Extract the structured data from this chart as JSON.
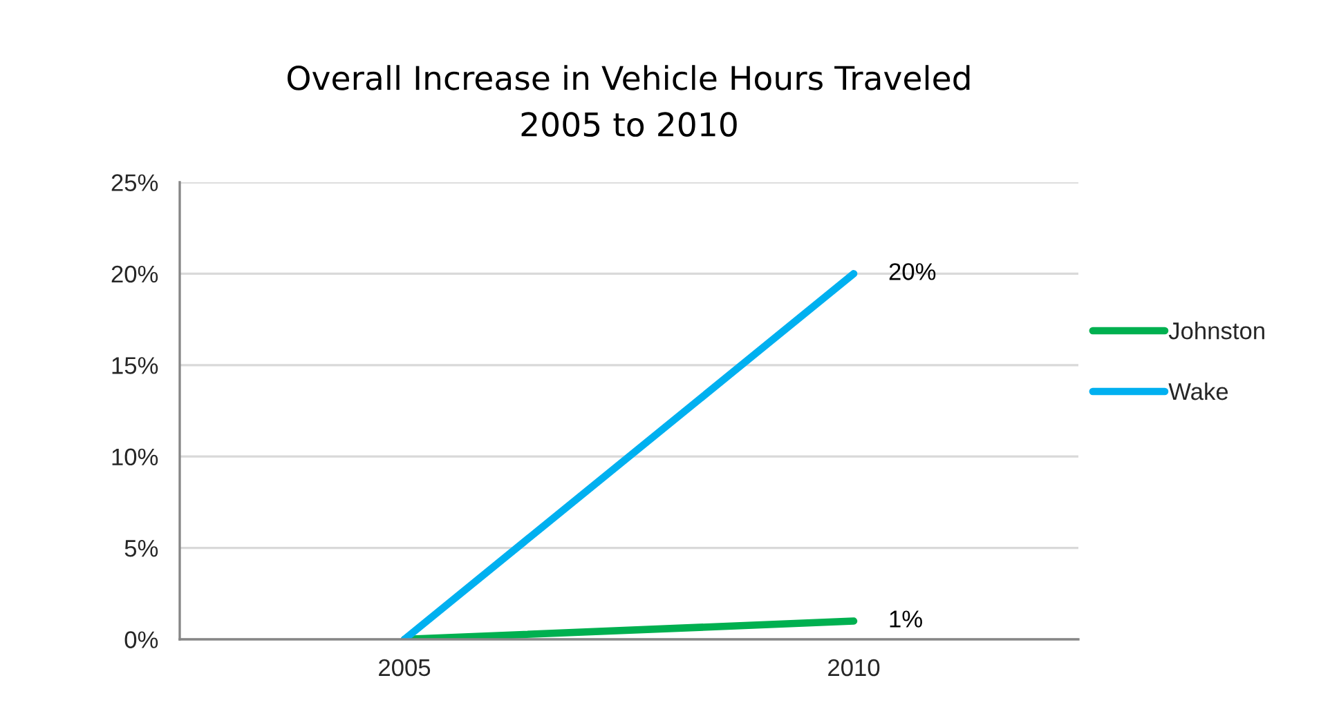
{
  "chart_data": {
    "type": "line",
    "title": "Overall Increase in Vehicle Hours Traveled\n2005 to 2010",
    "categories": [
      "2005",
      "2010"
    ],
    "series": [
      {
        "name": "Johnston",
        "color": "#00b050",
        "values": [
          0,
          1
        ],
        "value_labels": [
          null,
          "1%"
        ]
      },
      {
        "name": "Wake",
        "color": "#00b0f0",
        "values": [
          0,
          20
        ],
        "value_labels": [
          null,
          "20%"
        ]
      }
    ],
    "ylim": [
      0,
      25
    ],
    "yticks": [
      {
        "value": 0,
        "label": "0%"
      },
      {
        "value": 5,
        "label": "5%"
      },
      {
        "value": 10,
        "label": "10%"
      },
      {
        "value": 15,
        "label": "15%"
      },
      {
        "value": 20,
        "label": "20%"
      },
      {
        "value": 25,
        "label": "25%"
      }
    ],
    "grid": "y",
    "legend": "right"
  }
}
